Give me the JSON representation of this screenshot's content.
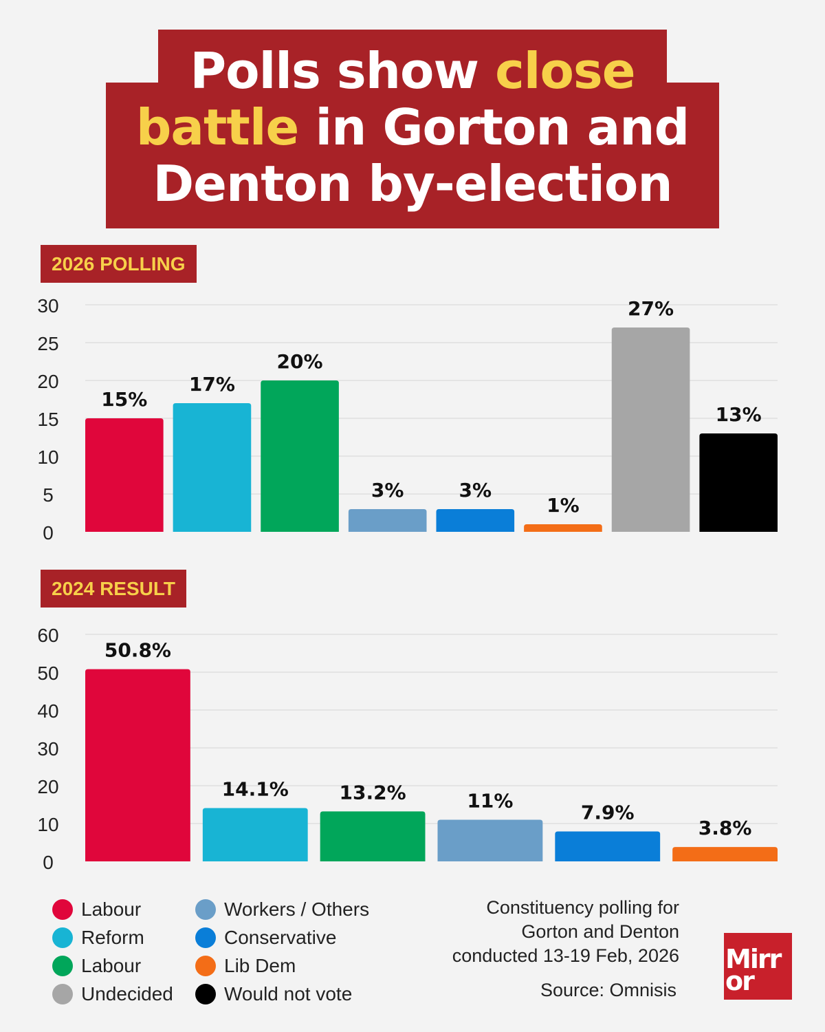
{
  "headline": {
    "line1_a": "Polls show ",
    "line1_b": "close",
    "line2_a": "battle",
    "line2_b": " in Gorton and",
    "line3": "Denton by-election",
    "background_color": "#a82227",
    "highlight_color": "#f7d04a"
  },
  "chart_data": [
    {
      "type": "bar",
      "title": "2026 POLLING",
      "ylim": [
        0,
        30
      ],
      "yticks": [
        0,
        5,
        10,
        15,
        20,
        25,
        30
      ],
      "grid": true,
      "categories": [
        "Labour",
        "Reform",
        "Labour",
        "Workers / Others",
        "Conservative",
        "Lib Dem",
        "Undecided",
        "Would not vote"
      ],
      "values": [
        15,
        17,
        20,
        3,
        3,
        1,
        27,
        13
      ],
      "labels": [
        "15%",
        "17%",
        "20%",
        "3%",
        "3%",
        "1%",
        "27%",
        "13%"
      ],
      "colors": [
        "#e0063b",
        "#18b4d4",
        "#01a65a",
        "#6a9ec8",
        "#0a7ed8",
        "#f36d17",
        "#a6a6a6",
        "#000000"
      ]
    },
    {
      "type": "bar",
      "title": "2024 RESULT",
      "ylim": [
        0,
        60
      ],
      "yticks": [
        0,
        10,
        20,
        30,
        40,
        50,
        60
      ],
      "grid": true,
      "categories": [
        "Labour",
        "Reform",
        "Labour",
        "Workers / Others",
        "Conservative",
        "Lib Dem"
      ],
      "values": [
        50.8,
        14.1,
        13.2,
        11,
        7.9,
        3.8
      ],
      "labels": [
        "50.8%",
        "14.1%",
        "13.2%",
        "11%",
        "7.9%",
        "3.8%"
      ],
      "colors": [
        "#e0063b",
        "#18b4d4",
        "#01a65a",
        "#6a9ec8",
        "#0a7ed8",
        "#f36d17"
      ]
    }
  ],
  "legend": [
    {
      "label": "Labour",
      "color": "#e0063b"
    },
    {
      "label": "Reform",
      "color": "#18b4d4"
    },
    {
      "label": "Labour",
      "color": "#01a65a"
    },
    {
      "label": "Undecided",
      "color": "#a6a6a6"
    },
    {
      "label": "Workers / Others",
      "color": "#6a9ec8"
    },
    {
      "label": "Conservative",
      "color": "#0a7ed8"
    },
    {
      "label": "Lib Dem",
      "color": "#f36d17"
    },
    {
      "label": "Would not vote",
      "color": "#000000"
    }
  ],
  "footnote": {
    "line1": "Constituency polling for",
    "line2": "Gorton and Denton",
    "line3": "conducted 13-19 Feb, 2026",
    "source": "Source: Omnisis"
  },
  "logo": {
    "line1": "Mirr",
    "line2": "or",
    "color": "#c8202b"
  }
}
